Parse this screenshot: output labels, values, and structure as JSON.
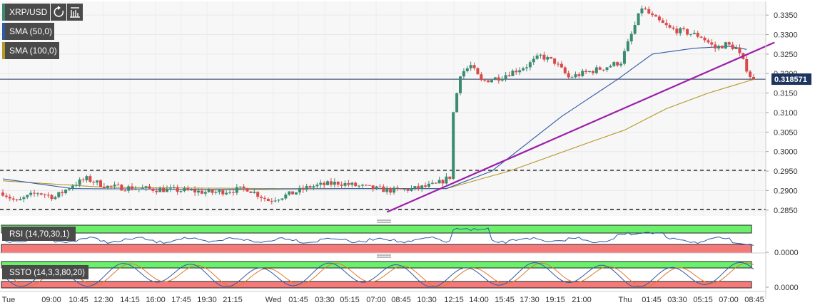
{
  "header": {
    "symbol": "XRP/USD",
    "indicators": [
      "SMA (50,0)",
      "SMA (100,0)"
    ],
    "icons": [
      "refresh-icon",
      "bar-settings-icon"
    ]
  },
  "price_badge": "0.318571",
  "rsi_label": "RSI (14,70,30,1)",
  "ssto_label": "SSTO (14,3,3,80,20)",
  "colors": {
    "bull": "#3b8a72",
    "bear": "#d94a4a",
    "sma50": "#2d5aa6",
    "sma100": "#b59a2a",
    "trend": "#9b1fa8",
    "green_zone": "#6cf06c",
    "red_zone": "#f47a7a"
  },
  "chart_data": {
    "type": "candlestick",
    "title": "XRP/USD",
    "ylim": [
      0.2835,
      0.3385
    ],
    "y_ticks": [
      "0.3350",
      "0.3300",
      "0.3250",
      "0.3200",
      "0.3150",
      "0.3100",
      "0.3050",
      "0.3000",
      "0.2950",
      "0.2900",
      "0.2850"
    ],
    "x_ticks": [
      "Tue",
      "09:00",
      "10:45",
      "12:30",
      "14:15",
      "16:00",
      "17:45",
      "19:30",
      "21:15",
      "Wed",
      "01:45",
      "03:30",
      "05:15",
      "07:00",
      "08:45",
      "10:30",
      "12:15",
      "14:00",
      "15:45",
      "17:30",
      "19:15",
      "21:00",
      "Thu",
      "01:45",
      "03:30",
      "05:15",
      "07:00",
      "08:45"
    ],
    "price_anchors": [
      [
        0,
        0.2895
      ],
      [
        4,
        0.287
      ],
      [
        6,
        0.288
      ],
      [
        10,
        0.2895
      ],
      [
        15,
        0.2883
      ],
      [
        20,
        0.2915
      ],
      [
        24,
        0.293
      ],
      [
        30,
        0.291
      ],
      [
        40,
        0.2905
      ],
      [
        52,
        0.29
      ],
      [
        60,
        0.2895
      ],
      [
        70,
        0.2905
      ],
      [
        76,
        0.2875
      ],
      [
        82,
        0.289
      ],
      [
        88,
        0.291
      ],
      [
        96,
        0.292
      ],
      [
        106,
        0.2905
      ],
      [
        112,
        0.29
      ],
      [
        118,
        0.2905
      ],
      [
        124,
        0.2915
      ],
      [
        128,
        0.2935
      ],
      [
        129,
        0.31
      ],
      [
        130,
        0.315
      ],
      [
        131,
        0.32
      ],
      [
        134,
        0.322
      ],
      [
        137,
        0.318
      ],
      [
        142,
        0.319
      ],
      [
        150,
        0.322
      ],
      [
        154,
        0.3245
      ],
      [
        158,
        0.323
      ],
      [
        162,
        0.319
      ],
      [
        166,
        0.32
      ],
      [
        172,
        0.3215
      ],
      [
        177,
        0.323
      ],
      [
        180,
        0.33
      ],
      [
        183,
        0.337
      ],
      [
        186,
        0.3345
      ],
      [
        191,
        0.3315
      ],
      [
        196,
        0.3305
      ],
      [
        200,
        0.3295
      ],
      [
        204,
        0.3265
      ],
      [
        207,
        0.3275
      ],
      [
        210,
        0.3265
      ],
      [
        212,
        0.323
      ],
      [
        214,
        0.3195
      ],
      [
        215,
        0.3185
      ]
    ],
    "sma50_anchors": [
      [
        0,
        0.293
      ],
      [
        20,
        0.2905
      ],
      [
        60,
        0.2903
      ],
      [
        100,
        0.2905
      ],
      [
        127,
        0.2905
      ],
      [
        140,
        0.295
      ],
      [
        160,
        0.309
      ],
      [
        176,
        0.3185
      ],
      [
        186,
        0.325
      ],
      [
        198,
        0.3265
      ],
      [
        208,
        0.327
      ],
      [
        213,
        0.3262
      ]
    ],
    "sma100_anchors": [
      [
        0,
        0.2925
      ],
      [
        30,
        0.2908
      ],
      [
        80,
        0.2905
      ],
      [
        127,
        0.2905
      ],
      [
        145,
        0.295
      ],
      [
        170,
        0.303
      ],
      [
        178,
        0.3055
      ],
      [
        190,
        0.311
      ],
      [
        202,
        0.315
      ],
      [
        215,
        0.3185
      ]
    ],
    "trendline": [
      [
        0.2845,
        110
      ],
      [
        0.328,
        221
      ]
    ],
    "support_levels": [
      0.2952,
      0.2852
    ],
    "last_price": 0.318571,
    "rsi": {
      "label": "RSI (14,70,30,1)",
      "axis_label": "0.0000"
    },
    "ssto": {
      "label": "SSTO (14,3,3,80,20)",
      "axis_label": "0.0000"
    }
  }
}
